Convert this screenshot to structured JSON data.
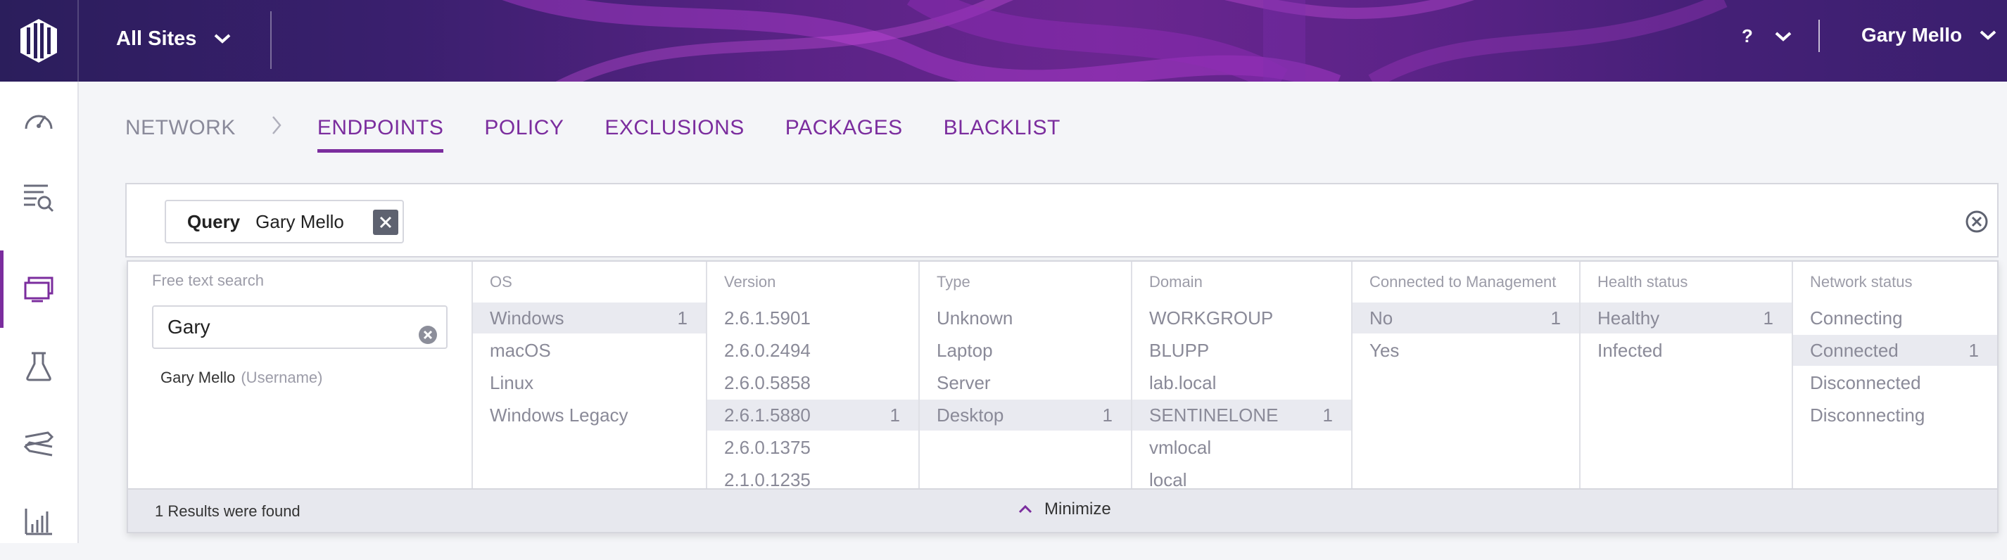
{
  "header": {
    "site_selector": "All Sites",
    "help_label": "?",
    "user_name": "Gary Mello"
  },
  "sidebar": {
    "items": [
      {
        "icon": "dashboard-icon"
      },
      {
        "icon": "activity-search-icon"
      },
      {
        "icon": "endpoints-icon",
        "active": true
      },
      {
        "icon": "research-flask-icon"
      },
      {
        "icon": "routes-icon"
      },
      {
        "icon": "reports-chart-icon"
      }
    ]
  },
  "nav": {
    "breadcrumb": "NETWORK",
    "tabs": [
      "ENDPOINTS",
      "POLICY",
      "EXCLUSIONS",
      "PACKAGES",
      "BLACKLIST"
    ],
    "active_tab": "ENDPOINTS"
  },
  "query": {
    "label": "Query",
    "value": "Gary Mello"
  },
  "filters": {
    "free_text": {
      "heading": "Free text search",
      "value": "Gary",
      "suggestion_name": "Gary Mello",
      "suggestion_type": "(Username)"
    },
    "columns": [
      {
        "heading": "OS",
        "options": [
          {
            "label": "Windows",
            "count": "1",
            "selected": true
          },
          {
            "label": "macOS"
          },
          {
            "label": "Linux"
          },
          {
            "label": "Windows Legacy"
          }
        ]
      },
      {
        "heading": "Version",
        "options": [
          {
            "label": "2.6.1.5901"
          },
          {
            "label": "2.6.0.2494"
          },
          {
            "label": "2.6.0.5858"
          },
          {
            "label": "2.6.1.5880",
            "count": "1",
            "selected": true
          },
          {
            "label": "2.6.0.1375"
          },
          {
            "label": "2.1.0.1235"
          }
        ]
      },
      {
        "heading": "Type",
        "options": [
          {
            "label": "Unknown"
          },
          {
            "label": "Laptop"
          },
          {
            "label": "Server"
          },
          {
            "label": "Desktop",
            "count": "1",
            "selected": true
          }
        ]
      },
      {
        "heading": "Domain",
        "options": [
          {
            "label": "WORKGROUP"
          },
          {
            "label": "BLUPP"
          },
          {
            "label": "lab.local"
          },
          {
            "label": "SENTINELONE",
            "count": "1",
            "selected": true
          },
          {
            "label": "vmlocal"
          },
          {
            "label": "local"
          }
        ]
      },
      {
        "heading": "Connected to Management",
        "options": [
          {
            "label": "No",
            "count": "1",
            "selected": true
          },
          {
            "label": "Yes"
          }
        ]
      },
      {
        "heading": "Health status",
        "options": [
          {
            "label": "Healthy",
            "count": "1",
            "selected": true
          },
          {
            "label": "Infected"
          }
        ]
      },
      {
        "heading": "Network status",
        "options": [
          {
            "label": "Connecting"
          },
          {
            "label": "Connected",
            "count": "1",
            "selected": true
          },
          {
            "label": "Disconnected"
          },
          {
            "label": "Disconnecting"
          }
        ]
      }
    ],
    "results_text": "1 Results were found",
    "minimize_label": "Minimize"
  },
  "colors": {
    "accent": "#7b2d9e",
    "header_dark": "#2b1e5c",
    "selected_row": "#e9eaf0"
  }
}
